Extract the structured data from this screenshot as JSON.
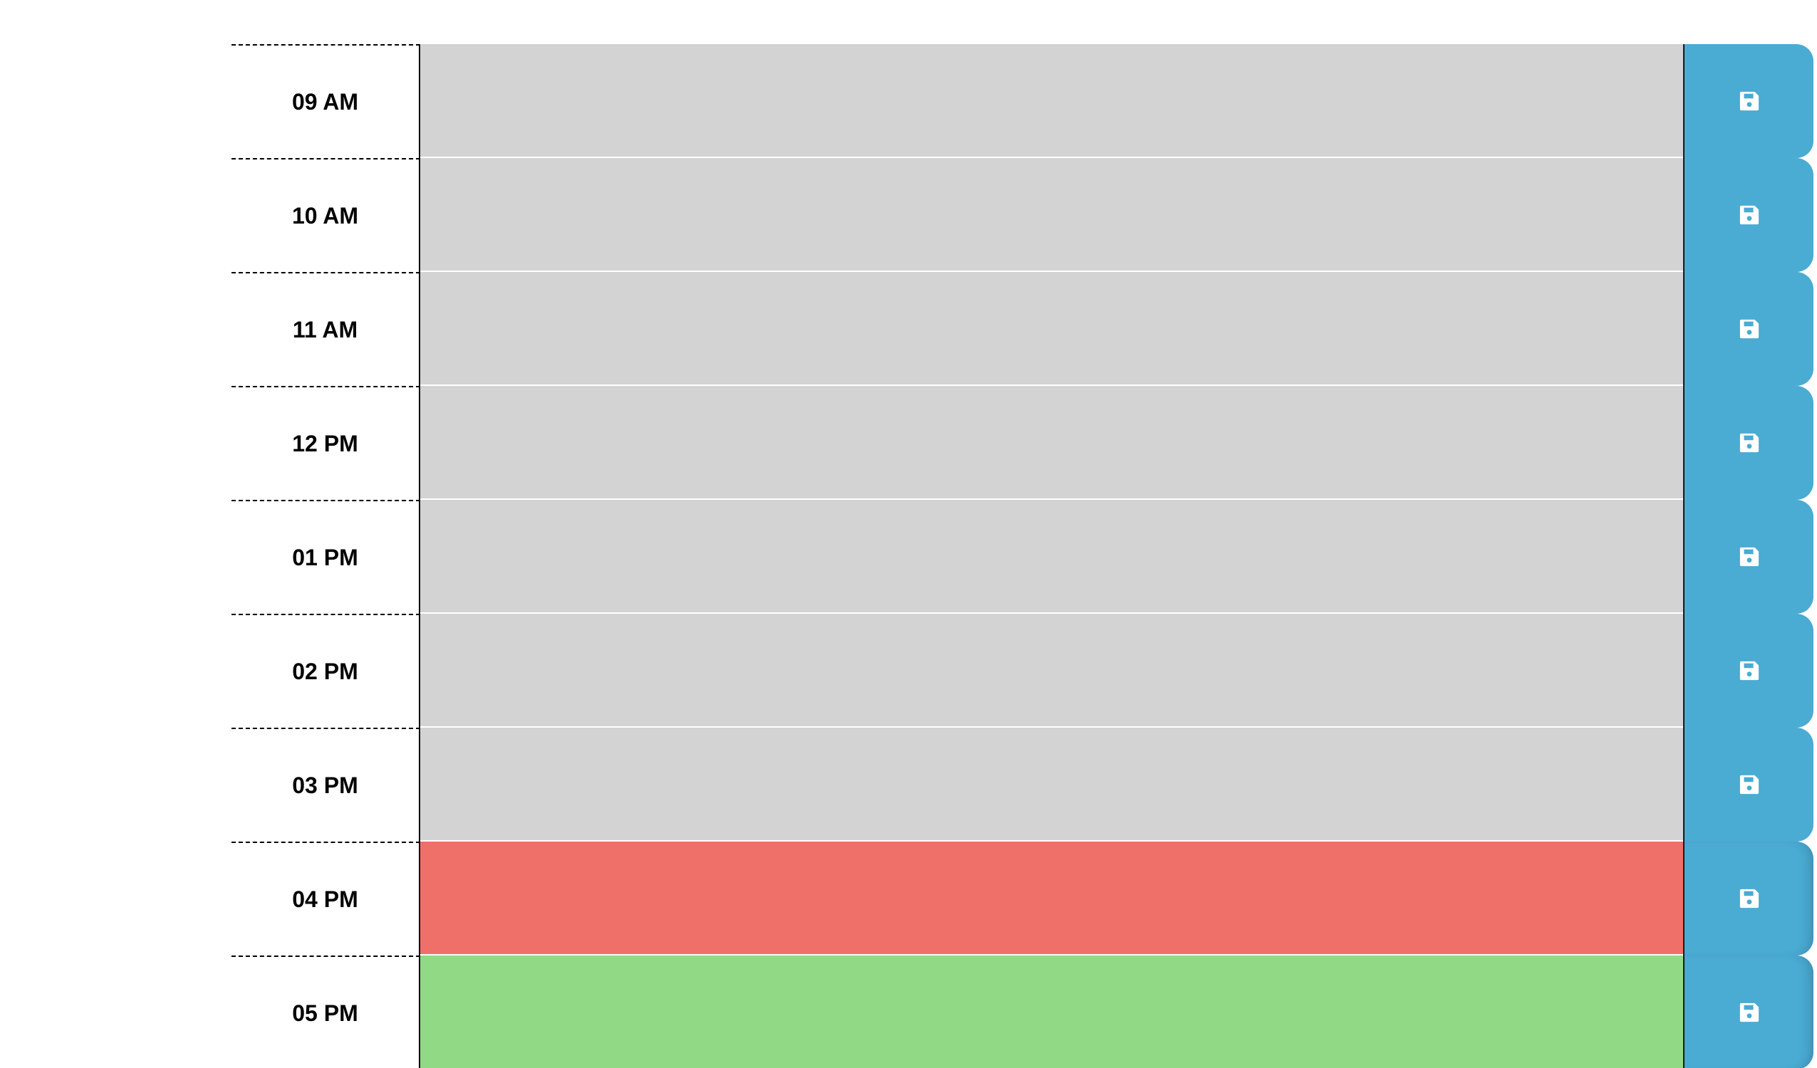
{
  "scheduler": {
    "blocks": [
      {
        "hour": "09 AM",
        "state": "past",
        "text": ""
      },
      {
        "hour": "10 AM",
        "state": "past",
        "text": ""
      },
      {
        "hour": "11 AM",
        "state": "past",
        "text": ""
      },
      {
        "hour": "12 PM",
        "state": "past",
        "text": ""
      },
      {
        "hour": "01 PM",
        "state": "past",
        "text": ""
      },
      {
        "hour": "02 PM",
        "state": "past",
        "text": ""
      },
      {
        "hour": "03 PM",
        "state": "past",
        "text": ""
      },
      {
        "hour": "04 PM",
        "state": "present",
        "text": ""
      },
      {
        "hour": "05 PM",
        "state": "future",
        "text": ""
      }
    ],
    "save_icon": "floppy-disk-icon",
    "colors": {
      "past": "#d3d3d3",
      "present": "#ef6f69",
      "future": "#91d985",
      "save": "#4aabd3"
    }
  }
}
